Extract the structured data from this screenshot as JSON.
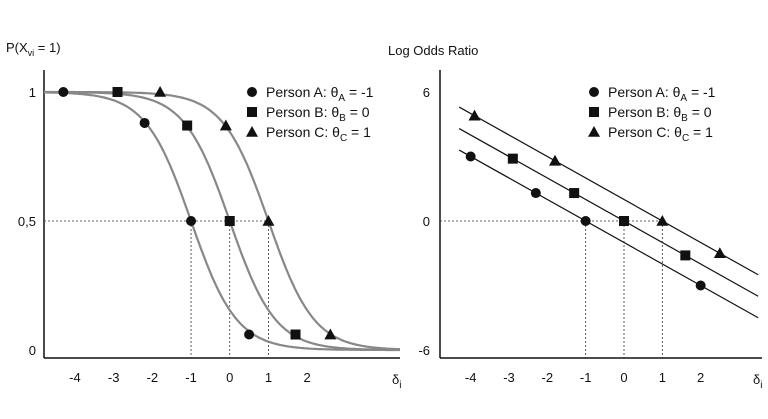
{
  "chart_data": [
    {
      "type": "line",
      "title": "",
      "ylabel": "P(X",
      "ylabel_sub": "vi",
      "ylabel_tail": " = 1)",
      "xlabel": "δ",
      "xlabel_sub": "i",
      "xlim": [
        -4.8,
        4.4
      ],
      "ylim": [
        0,
        1
      ],
      "x_ticks": [
        "-4",
        "-3",
        "-2",
        "-1",
        "0",
        "1",
        "2"
      ],
      "x_tick_values": [
        -4,
        -3,
        -2,
        -1,
        0,
        1,
        2
      ],
      "y_ticks": [
        "0",
        "0,5",
        "1"
      ],
      "y_tick_values": [
        0,
        0.5,
        1
      ],
      "grid": false,
      "legend_position": "top-right",
      "reference_lines": [
        {
          "x": -1,
          "y": 0.5
        },
        {
          "x": 0,
          "y": 0.5
        },
        {
          "x": 1,
          "y": 0.5
        }
      ],
      "series": [
        {
          "name": "Person A: θ",
          "sub": "A",
          "tail": " = -1",
          "theta": -1,
          "marker": "circle",
          "points": [
            [
              -4.3,
              1.0
            ],
            [
              -2.2,
              0.88
            ],
            [
              -1.0,
              0.5
            ],
            [
              0.5,
              0.06
            ]
          ]
        },
        {
          "name": "Person B: θ",
          "sub": "B",
          "tail": " =  0",
          "theta": 0,
          "marker": "square",
          "points": [
            [
              -2.9,
              1.0
            ],
            [
              -1.1,
              0.87
            ],
            [
              0.0,
              0.5
            ],
            [
              1.7,
              0.06
            ]
          ]
        },
        {
          "name": "Person C: θ",
          "sub": "C",
          "tail": " =  1",
          "theta": 1,
          "marker": "triangle",
          "points": [
            [
              -1.8,
              1.0
            ],
            [
              -0.1,
              0.87
            ],
            [
              1.0,
              0.5
            ],
            [
              2.6,
              0.06
            ]
          ]
        }
      ]
    },
    {
      "type": "line",
      "title": "Log Odds Ratio",
      "xlabel": "δ",
      "xlabel_sub": "i",
      "xlim": [
        -4.8,
        3.6
      ],
      "ylim": [
        -6,
        6
      ],
      "x_ticks": [
        "-4",
        "-3",
        "-2",
        "-1",
        "0",
        "1",
        "2"
      ],
      "x_tick_values": [
        -4,
        -3,
        -2,
        -1,
        0,
        1,
        2
      ],
      "y_ticks": [
        "-6",
        "0",
        "6"
      ],
      "y_tick_values": [
        -6,
        0,
        6
      ],
      "grid": false,
      "legend_position": "top-right",
      "reference_lines": [
        {
          "x": -1,
          "y": 0
        },
        {
          "x": 0,
          "y": 0
        },
        {
          "x": 1,
          "y": 0
        }
      ],
      "series": [
        {
          "name": "Person A: θ",
          "sub": "A",
          "tail": " = -1",
          "theta": -1,
          "marker": "circle",
          "points": [
            [
              -4.0,
              3.0
            ],
            [
              -2.3,
              1.3
            ],
            [
              -1.0,
              0.0
            ],
            [
              2.0,
              -3.0
            ]
          ]
        },
        {
          "name": "Person B: θ",
          "sub": "B",
          "tail": " =  0",
          "theta": 0,
          "marker": "square",
          "points": [
            [
              -2.9,
              2.9
            ],
            [
              -1.3,
              1.3
            ],
            [
              0.0,
              0.0
            ],
            [
              1.6,
              -1.6
            ]
          ]
        },
        {
          "name": "Person C: θ",
          "sub": "C",
          "tail": " =  1",
          "theta": 1,
          "marker": "triangle",
          "points": [
            [
              -3.9,
              4.9
            ],
            [
              -1.8,
              2.8
            ],
            [
              1.0,
              0.0
            ],
            [
              2.5,
              -1.5
            ]
          ]
        }
      ]
    }
  ]
}
